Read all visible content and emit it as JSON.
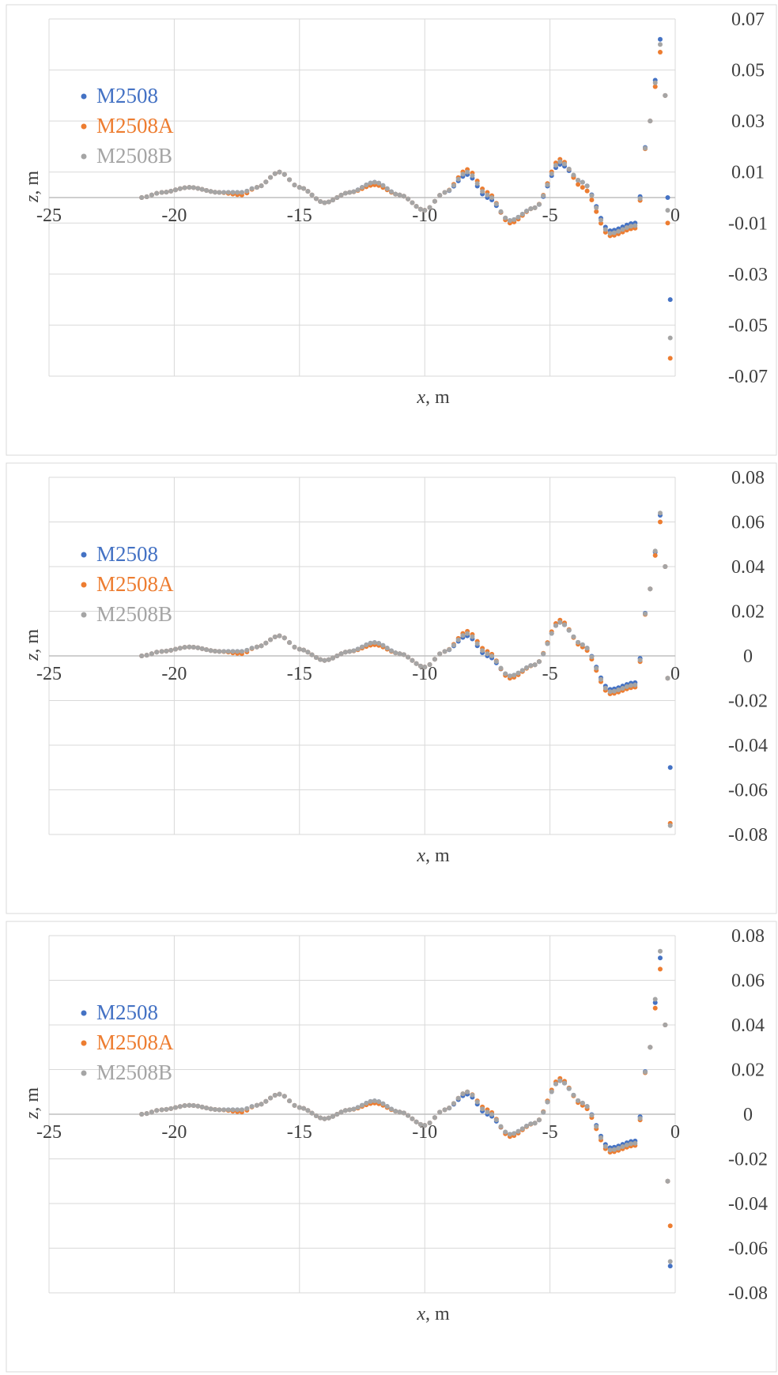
{
  "colors": {
    "M2508": "#4472C4",
    "M2508A": "#ED7D31",
    "M2508B": "#A5A5A5",
    "grid": "#D9D9D9",
    "axis": "#BFBFBF",
    "text": "#404040"
  },
  "chart_data": [
    {
      "type": "scatter",
      "title": "",
      "xlabel_var": "x",
      "xlabel_unit": ", m",
      "ylabel_var": "z",
      "ylabel_unit": ", m",
      "xlim": [
        -25,
        0
      ],
      "ylim": [
        -0.07,
        0.07
      ],
      "xticks": [
        -25,
        -20,
        -15,
        -10,
        -5,
        0
      ],
      "xtick_labels": [
        "-25",
        "-20",
        "-15",
        "-10",
        "-5",
        "0"
      ],
      "yticks": [
        -0.07,
        -0.05,
        -0.03,
        -0.01,
        0.01,
        0.03,
        0.05,
        0.07
      ],
      "ytick_labels": [
        "-0.07",
        "-0.05",
        "-0.03",
        "-0.01",
        "0.01",
        "0.03",
        "0.05",
        "0.07"
      ],
      "grid": true,
      "legend_position": "left",
      "series": [
        {
          "name": "M2508",
          "colorKey": "M2508",
          "x": [
            -21.3,
            -20.5,
            -19.4,
            -18.2,
            -17.3,
            -16.7,
            -15.8,
            -15.0,
            -14.0,
            -13.0,
            -12.0,
            -11.0,
            -10.0,
            -9.2,
            -8.3,
            -7.5,
            -6.6,
            -5.6,
            -4.6,
            -3.7,
            -2.6,
            -1.6,
            -1.0,
            -0.6,
            -0.4,
            -0.3,
            -0.2
          ],
          "y": [
            0.0,
            0.002,
            0.004,
            0.002,
            0.002,
            0.004,
            0.01,
            0.004,
            -0.002,
            0.002,
            0.006,
            0.001,
            -0.005,
            0.002,
            0.009,
            0.0,
            -0.009,
            -0.004,
            0.013,
            0.006,
            -0.013,
            -0.01,
            0.03,
            0.062,
            0.04,
            0.0,
            -0.04
          ]
        },
        {
          "name": "M2508A",
          "colorKey": "M2508A",
          "x": [
            -21.3,
            -20.5,
            -19.4,
            -18.2,
            -17.3,
            -16.7,
            -15.8,
            -15.0,
            -14.0,
            -13.0,
            -12.0,
            -11.0,
            -10.0,
            -9.2,
            -8.3,
            -7.5,
            -6.6,
            -5.6,
            -4.6,
            -3.7,
            -2.6,
            -1.6,
            -1.0,
            -0.6,
            -0.4,
            -0.3,
            -0.2
          ],
          "y": [
            0.0,
            0.002,
            0.004,
            0.002,
            0.001,
            0.004,
            0.01,
            0.004,
            -0.002,
            0.002,
            0.005,
            0.001,
            -0.005,
            0.002,
            0.011,
            0.002,
            -0.01,
            -0.004,
            0.015,
            0.004,
            -0.015,
            -0.012,
            0.03,
            0.057,
            0.04,
            -0.01,
            -0.063
          ]
        },
        {
          "name": "M2508B",
          "colorKey": "M2508B",
          "x": [
            -21.3,
            -20.5,
            -19.4,
            -18.2,
            -17.3,
            -16.7,
            -15.8,
            -15.0,
            -14.0,
            -13.0,
            -12.0,
            -11.0,
            -10.0,
            -9.2,
            -8.3,
            -7.5,
            -6.6,
            -5.6,
            -4.6,
            -3.7,
            -2.6,
            -1.6,
            -1.0,
            -0.6,
            -0.4,
            -0.3,
            -0.2
          ],
          "y": [
            0.0,
            0.002,
            0.004,
            0.002,
            0.002,
            0.004,
            0.01,
            0.004,
            -0.002,
            0.002,
            0.006,
            0.001,
            -0.005,
            0.002,
            0.01,
            0.001,
            -0.009,
            -0.004,
            0.014,
            0.006,
            -0.014,
            -0.011,
            0.03,
            0.06,
            0.04,
            -0.005,
            -0.055
          ]
        }
      ]
    },
    {
      "type": "scatter",
      "title": "",
      "xlabel_var": "x",
      "xlabel_unit": ", m",
      "ylabel_var": "z",
      "ylabel_unit": ", m",
      "xlim": [
        -25,
        0
      ],
      "ylim": [
        -0.08,
        0.08
      ],
      "xticks": [
        -25,
        -20,
        -15,
        -10,
        -5,
        0
      ],
      "xtick_labels": [
        "-25",
        "-20",
        "-15",
        "-10",
        "-5",
        "0"
      ],
      "yticks": [
        -0.08,
        -0.06,
        -0.04,
        -0.02,
        0,
        0.02,
        0.04,
        0.06,
        0.08
      ],
      "ytick_labels": [
        "-0.08",
        "-0.06",
        "-0.04",
        "-0.02",
        "0",
        "0.02",
        "0.04",
        "0.06",
        "0.08"
      ],
      "grid": true,
      "legend_position": "left",
      "series": [
        {
          "name": "M2508",
          "colorKey": "M2508",
          "x": [
            -21.3,
            -20.5,
            -19.4,
            -18.2,
            -17.3,
            -16.7,
            -15.8,
            -15.0,
            -14.0,
            -13.0,
            -12.0,
            -11.0,
            -10.0,
            -9.2,
            -8.3,
            -7.5,
            -6.6,
            -5.6,
            -4.6,
            -3.7,
            -2.6,
            -1.6,
            -1.0,
            -0.6,
            -0.4,
            -0.3,
            -0.2
          ],
          "y": [
            0.0,
            0.002,
            0.004,
            0.002,
            0.002,
            0.004,
            0.009,
            0.003,
            -0.002,
            0.002,
            0.006,
            0.001,
            -0.005,
            0.002,
            0.009,
            0.0,
            -0.009,
            -0.004,
            0.015,
            0.005,
            -0.015,
            -0.012,
            0.03,
            0.063,
            0.04,
            -0.01,
            -0.05
          ]
        },
        {
          "name": "M2508A",
          "colorKey": "M2508A",
          "x": [
            -21.3,
            -20.5,
            -19.4,
            -18.2,
            -17.3,
            -16.7,
            -15.8,
            -15.0,
            -14.0,
            -13.0,
            -12.0,
            -11.0,
            -10.0,
            -9.2,
            -8.3,
            -7.5,
            -6.6,
            -5.6,
            -4.6,
            -3.7,
            -2.6,
            -1.6,
            -1.0,
            -0.6,
            -0.4,
            -0.3,
            -0.2
          ],
          "y": [
            0.0,
            0.002,
            0.004,
            0.002,
            0.001,
            0.004,
            0.009,
            0.003,
            -0.002,
            0.002,
            0.005,
            0.001,
            -0.005,
            0.002,
            0.011,
            0.002,
            -0.01,
            -0.004,
            0.016,
            0.004,
            -0.017,
            -0.014,
            0.03,
            0.06,
            0.04,
            -0.01,
            -0.075
          ]
        },
        {
          "name": "M2508B",
          "colorKey": "M2508B",
          "x": [
            -21.3,
            -20.5,
            -19.4,
            -18.2,
            -17.3,
            -16.7,
            -15.8,
            -15.0,
            -14.0,
            -13.0,
            -12.0,
            -11.0,
            -10.0,
            -9.2,
            -8.3,
            -7.5,
            -6.6,
            -5.6,
            -4.6,
            -3.7,
            -2.6,
            -1.6,
            -1.0,
            -0.6,
            -0.4,
            -0.3,
            -0.2
          ],
          "y": [
            0.0,
            0.002,
            0.004,
            0.002,
            0.002,
            0.004,
            0.009,
            0.003,
            -0.002,
            0.002,
            0.006,
            0.001,
            -0.005,
            0.002,
            0.01,
            0.001,
            -0.009,
            -0.004,
            0.015,
            0.005,
            -0.016,
            -0.013,
            0.03,
            0.064,
            0.04,
            -0.01,
            -0.076
          ]
        }
      ]
    },
    {
      "type": "scatter",
      "title": "",
      "xlabel_var": "x",
      "xlabel_unit": ", m",
      "ylabel_var": "z",
      "ylabel_unit": ", m",
      "xlim": [
        -25,
        0
      ],
      "ylim": [
        -0.08,
        0.08
      ],
      "xticks": [
        -25,
        -20,
        -15,
        -10,
        -5,
        0
      ],
      "xtick_labels": [
        "-25",
        "-20",
        "-15",
        "-10",
        "-5",
        "0"
      ],
      "yticks": [
        -0.08,
        -0.06,
        -0.04,
        -0.02,
        0,
        0.02,
        0.04,
        0.06,
        0.08
      ],
      "ytick_labels": [
        "-0.08",
        "-0.06",
        "-0.04",
        "-0.02",
        "0",
        "0.02",
        "0.04",
        "0.06",
        "0.08"
      ],
      "grid": true,
      "legend_position": "left",
      "series": [
        {
          "name": "M2508",
          "colorKey": "M2508",
          "x": [
            -21.3,
            -20.5,
            -19.4,
            -18.2,
            -17.3,
            -16.7,
            -15.8,
            -15.0,
            -14.0,
            -13.0,
            -12.0,
            -11.0,
            -10.0,
            -9.2,
            -8.3,
            -7.5,
            -6.6,
            -5.6,
            -4.6,
            -3.7,
            -2.6,
            -1.6,
            -1.0,
            -0.6,
            -0.4,
            -0.3,
            -0.2
          ],
          "y": [
            0.0,
            0.002,
            0.004,
            0.002,
            0.002,
            0.004,
            0.009,
            0.003,
            -0.002,
            0.002,
            0.006,
            0.001,
            -0.005,
            0.002,
            0.009,
            0.0,
            -0.009,
            -0.004,
            0.015,
            0.005,
            -0.015,
            -0.012,
            0.03,
            0.07,
            0.04,
            -0.03,
            -0.068
          ]
        },
        {
          "name": "M2508A",
          "colorKey": "M2508A",
          "x": [
            -21.3,
            -20.5,
            -19.4,
            -18.2,
            -17.3,
            -16.7,
            -15.8,
            -15.0,
            -14.0,
            -13.0,
            -12.0,
            -11.0,
            -10.0,
            -9.2,
            -8.3,
            -7.5,
            -6.6,
            -5.6,
            -4.6,
            -3.7,
            -2.6,
            -1.6,
            -1.0,
            -0.6,
            -0.4,
            -0.3,
            -0.2
          ],
          "y": [
            0.0,
            0.002,
            0.004,
            0.002,
            0.001,
            0.004,
            0.009,
            0.003,
            -0.002,
            0.002,
            0.005,
            0.001,
            -0.005,
            0.002,
            0.01,
            0.002,
            -0.01,
            -0.004,
            0.016,
            0.004,
            -0.017,
            -0.014,
            0.03,
            0.065,
            0.04,
            -0.03,
            -0.05
          ]
        },
        {
          "name": "M2508B",
          "colorKey": "M2508B",
          "x": [
            -21.3,
            -20.5,
            -19.4,
            -18.2,
            -17.3,
            -16.7,
            -15.8,
            -15.0,
            -14.0,
            -13.0,
            -12.0,
            -11.0,
            -10.0,
            -9.2,
            -8.3,
            -7.5,
            -6.6,
            -5.6,
            -4.6,
            -3.7,
            -2.6,
            -1.6,
            -1.0,
            -0.6,
            -0.4,
            -0.3,
            -0.2
          ],
          "y": [
            0.0,
            0.002,
            0.004,
            0.002,
            0.002,
            0.004,
            0.009,
            0.003,
            -0.002,
            0.002,
            0.006,
            0.001,
            -0.005,
            0.002,
            0.01,
            0.001,
            -0.009,
            -0.004,
            0.015,
            0.005,
            -0.016,
            -0.013,
            0.03,
            0.073,
            0.04,
            -0.03,
            -0.066
          ]
        }
      ]
    }
  ]
}
